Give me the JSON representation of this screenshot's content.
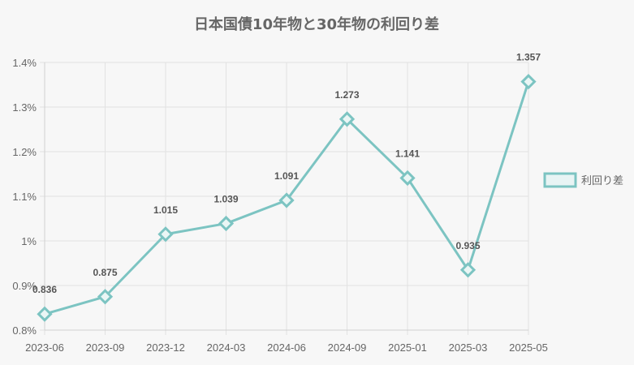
{
  "chart_data": {
    "type": "line",
    "title": "日本国債10年物と30年物の利回り差",
    "categories": [
      "2023-06",
      "2023-09",
      "2023-12",
      "2024-03",
      "2024-06",
      "2024-09",
      "2025-01",
      "2025-03",
      "2025-05"
    ],
    "series": [
      {
        "name": "利回り差",
        "values": [
          0.836,
          0.875,
          1.015,
          1.039,
          1.091,
          1.273,
          1.141,
          0.935,
          1.357
        ],
        "color": "#7cc4c2",
        "marker": "diamond"
      }
    ],
    "data_labels": [
      "0.836",
      "0.875",
      "1.015",
      "1.039",
      "1.091",
      "1.273",
      "1.141",
      "0.935",
      "1.357"
    ],
    "ylim": [
      0.8,
      1.4
    ],
    "y_ticks": [
      0.8,
      0.9,
      1.0,
      1.1,
      1.2,
      1.3,
      1.4
    ],
    "y_tick_labels": [
      "0.8%",
      "0.9%",
      "1%",
      "1.1%",
      "1.2%",
      "1.3%",
      "1.4%"
    ],
    "grid": true,
    "legend_position": "right"
  }
}
